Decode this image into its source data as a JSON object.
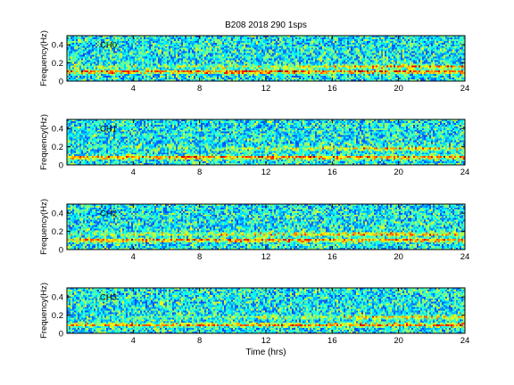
{
  "figure": {
    "title": "B208 2018 290 1sps",
    "xlabel": "Time (hrs)"
  },
  "chart_data": [
    {
      "type": "heatmap",
      "label": "CH0",
      "ylabel": "Frequency(Hz)",
      "xlim": [
        0,
        24
      ],
      "ylim": [
        0,
        0.5
      ],
      "xticks": [
        "4",
        "8",
        "12",
        "16",
        "20",
        "24"
      ],
      "yticks": [
        "0",
        "0.2",
        "0.4"
      ],
      "bands": [
        {
          "freq": 0.1,
          "strength": [
            0.9,
            0.9,
            0.9,
            0.9,
            0.9,
            0.9
          ]
        },
        {
          "freq": 0.16,
          "strength": [
            0.15,
            0.25,
            0.35,
            0.55,
            0.7,
            0.75
          ]
        }
      ]
    },
    {
      "type": "heatmap",
      "label": "CH1",
      "ylabel": "Frequency(Hz)",
      "xlim": [
        0,
        24
      ],
      "ylim": [
        0,
        0.5
      ],
      "xticks": [
        "4",
        "8",
        "12",
        "16",
        "20",
        "24"
      ],
      "yticks": [
        "0",
        "0.2",
        "0.4"
      ],
      "bands": [
        {
          "freq": 0.08,
          "strength": [
            0.85,
            0.85,
            0.85,
            0.85,
            0.85,
            0.85
          ]
        },
        {
          "freq": 0.18,
          "strength": [
            0.05,
            0.1,
            0.2,
            0.45,
            0.6,
            0.55
          ]
        }
      ]
    },
    {
      "type": "heatmap",
      "label": "CH2",
      "ylabel": "Frequency(Hz)",
      "xlim": [
        0,
        24
      ],
      "ylim": [
        0,
        0.5
      ],
      "xticks": [
        "4",
        "8",
        "12",
        "16",
        "20",
        "24"
      ],
      "yticks": [
        "0",
        "0.2",
        "0.4"
      ],
      "bands": [
        {
          "freq": 0.1,
          "strength": [
            0.8,
            0.8,
            0.8,
            0.8,
            0.8,
            0.8
          ]
        },
        {
          "freq": 0.17,
          "strength": [
            0.25,
            0.35,
            0.5,
            0.65,
            0.7,
            0.7
          ]
        }
      ]
    },
    {
      "type": "heatmap",
      "label": "CH3",
      "ylabel": "Frequency(Hz)",
      "xlim": [
        0,
        24
      ],
      "ylim": [
        0,
        0.5
      ],
      "xticks": [
        "4",
        "8",
        "12",
        "16",
        "20",
        "24"
      ],
      "yticks": [
        "0",
        "0.2",
        "0.4"
      ],
      "bands": [
        {
          "freq": 0.09,
          "strength": [
            0.75,
            0.75,
            0.75,
            0.8,
            0.8,
            0.8
          ]
        },
        {
          "freq": 0.18,
          "strength": [
            0.05,
            0.1,
            0.2,
            0.4,
            0.55,
            0.55
          ]
        }
      ]
    }
  ]
}
